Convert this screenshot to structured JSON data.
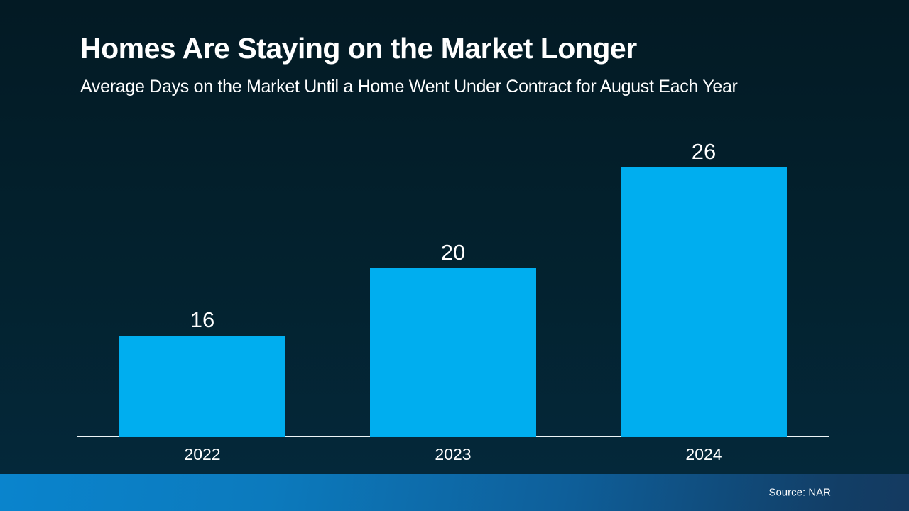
{
  "header": {
    "title": "Homes Are Staying on the Market Longer",
    "subtitle": "Average Days on the Market Until a Home Went Under Contract for August Each Year"
  },
  "chart_data": {
    "type": "bar",
    "categories": [
      "2022",
      "2023",
      "2024"
    ],
    "values": [
      16,
      20,
      26
    ],
    "title": "Homes Are Staying on the Market Longer",
    "subtitle": "Average Days on the Market Until a Home Went Under Contract for August Each Year",
    "xlabel": "",
    "ylabel": "",
    "ylim": [
      10,
      27
    ],
    "grid": false,
    "legend": false,
    "value_labels_shown": true
  },
  "footer": {
    "source_label": "Source: NAR"
  },
  "colors": {
    "bar": "#00AEEF",
    "background_top": "#031a24",
    "background_bottom": "#04293c",
    "axis_line": "#EEF4F7",
    "text": "#FFFFFF",
    "footer_gradient_left": "#0A84CD",
    "footer_gradient_right": "#143A60"
  }
}
